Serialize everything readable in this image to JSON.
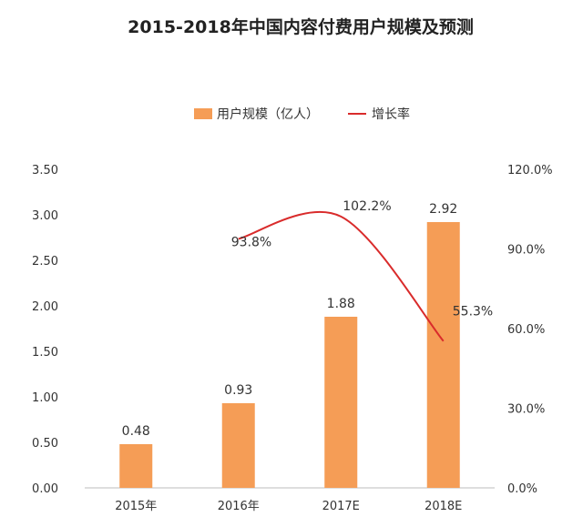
{
  "chart_data": {
    "type": "bar",
    "title": "2015-2018年中国内容付费用户规模及预测",
    "categories": [
      "2015年",
      "2016年",
      "2017E",
      "2018E"
    ],
    "series": [
      {
        "name": "用户规模（亿人）",
        "type": "bar",
        "axis": "left",
        "color": "#F59D56",
        "values": [
          0.48,
          0.93,
          1.88,
          2.92
        ],
        "labels": [
          "0.48",
          "0.93",
          "1.88",
          "2.92"
        ]
      },
      {
        "name": "增长率",
        "type": "line",
        "axis": "right",
        "color": "#D92B2B",
        "values": [
          null,
          93.8,
          102.2,
          55.3
        ],
        "labels": [
          "",
          "93.8%",
          "102.2%",
          "55.3%"
        ]
      }
    ],
    "y_left": {
      "min": 0,
      "max": 3.5,
      "ticks": [
        "0.00",
        "0.50",
        "1.00",
        "1.50",
        "2.00",
        "2.50",
        "3.00",
        "3.50"
      ]
    },
    "y_right": {
      "min": 0,
      "max": 120,
      "ticks": [
        "0.0%",
        "30.0%",
        "60.0%",
        "90.0%",
        "120.0%"
      ]
    },
    "legend_position": "top",
    "grid": false
  }
}
